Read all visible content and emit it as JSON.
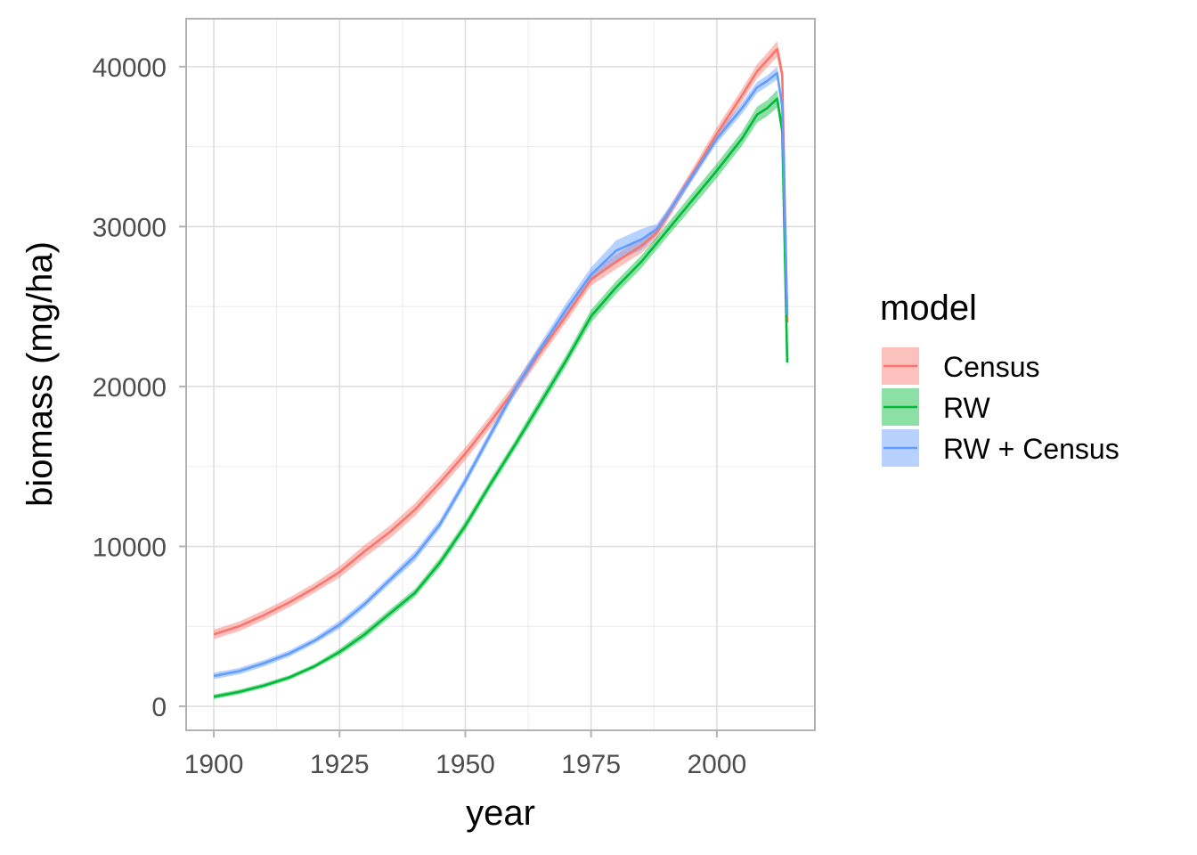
{
  "chart_data": {
    "type": "line",
    "title": "",
    "xlabel": "year",
    "ylabel": "biomass (mg/ha)",
    "xlim": [
      1894.5,
      2019.5
    ],
    "ylim": [
      -1500,
      43000
    ],
    "x_ticks": [
      1900,
      1925,
      1950,
      1975,
      2000
    ],
    "x_tick_labels": [
      "1900",
      "1925",
      "1950",
      "1975",
      "2000"
    ],
    "y_ticks": [
      0,
      10000,
      20000,
      30000,
      40000
    ],
    "y_tick_labels": [
      "0",
      "10000",
      "20000",
      "30000",
      "40000"
    ],
    "grid": true,
    "legend": {
      "title": "model",
      "position": "right"
    },
    "series": [
      {
        "name": "Census",
        "color": "#F8766D",
        "points": [
          [
            1900,
            4500
          ],
          [
            1905,
            5000
          ],
          [
            1910,
            5700
          ],
          [
            1915,
            6500
          ],
          [
            1920,
            7400
          ],
          [
            1925,
            8400
          ],
          [
            1930,
            9700
          ],
          [
            1935,
            10900
          ],
          [
            1940,
            12300
          ],
          [
            1945,
            14000
          ],
          [
            1950,
            15800
          ],
          [
            1955,
            17800
          ],
          [
            1960,
            19900
          ],
          [
            1965,
            22200
          ],
          [
            1970,
            24400
          ],
          [
            1975,
            26700
          ],
          [
            1980,
            27800
          ],
          [
            1985,
            28800
          ],
          [
            1988,
            29600
          ],
          [
            1990,
            30600
          ],
          [
            1995,
            33200
          ],
          [
            2000,
            35800
          ],
          [
            2005,
            38200
          ],
          [
            2008,
            39700
          ],
          [
            2010,
            40400
          ],
          [
            2012,
            41100
          ],
          [
            2013,
            39500
          ],
          [
            2014,
            24000
          ]
        ],
        "band_halfwidth": [
          300,
          300,
          300,
          300,
          300,
          350,
          400,
          400,
          400,
          400,
          400,
          400,
          400,
          400,
          400,
          400,
          450,
          450,
          400,
          350,
          350,
          400,
          400,
          450,
          450,
          500,
          500,
          500
        ]
      },
      {
        "name": "RW",
        "color": "#00BA38",
        "points": [
          [
            1900,
            600
          ],
          [
            1905,
            900
          ],
          [
            1910,
            1300
          ],
          [
            1915,
            1800
          ],
          [
            1920,
            2500
          ],
          [
            1925,
            3400
          ],
          [
            1930,
            4500
          ],
          [
            1935,
            5800
          ],
          [
            1940,
            7100
          ],
          [
            1945,
            9000
          ],
          [
            1950,
            11300
          ],
          [
            1955,
            13900
          ],
          [
            1960,
            16400
          ],
          [
            1965,
            19000
          ],
          [
            1970,
            21600
          ],
          [
            1975,
            24400
          ],
          [
            1980,
            26200
          ],
          [
            1985,
            27800
          ],
          [
            1990,
            29700
          ],
          [
            1995,
            31600
          ],
          [
            2000,
            33500
          ],
          [
            2005,
            35500
          ],
          [
            2008,
            37000
          ],
          [
            2010,
            37400
          ],
          [
            2012,
            38000
          ],
          [
            2013,
            36000
          ],
          [
            2014,
            21500
          ]
        ],
        "band_halfwidth": [
          150,
          150,
          150,
          150,
          150,
          200,
          250,
          250,
          250,
          300,
          300,
          300,
          300,
          350,
          350,
          400,
          400,
          400,
          400,
          450,
          450,
          450,
          500,
          500,
          550,
          550,
          550
        ]
      },
      {
        "name": "RW + Census",
        "color": "#619CFF",
        "points": [
          [
            1900,
            1900
          ],
          [
            1905,
            2200
          ],
          [
            1910,
            2700
          ],
          [
            1915,
            3300
          ],
          [
            1920,
            4100
          ],
          [
            1925,
            5100
          ],
          [
            1930,
            6400
          ],
          [
            1935,
            7900
          ],
          [
            1940,
            9400
          ],
          [
            1945,
            11400
          ],
          [
            1950,
            14100
          ],
          [
            1955,
            17000
          ],
          [
            1960,
            19900
          ],
          [
            1965,
            22400
          ],
          [
            1970,
            24800
          ],
          [
            1975,
            27000
          ],
          [
            1980,
            28500
          ],
          [
            1985,
            29200
          ],
          [
            1988,
            29800
          ],
          [
            1990,
            30700
          ],
          [
            1995,
            33100
          ],
          [
            2000,
            35500
          ],
          [
            2005,
            37400
          ],
          [
            2008,
            38700
          ],
          [
            2010,
            39100
          ],
          [
            2012,
            39600
          ],
          [
            2013,
            37500
          ],
          [
            2014,
            24500
          ]
        ],
        "band_halfwidth": [
          200,
          200,
          200,
          200,
          200,
          250,
          250,
          250,
          300,
          300,
          300,
          300,
          350,
          350,
          400,
          450,
          650,
          650,
          350,
          300,
          300,
          300,
          350,
          350,
          350,
          400,
          400,
          400
        ]
      }
    ]
  }
}
